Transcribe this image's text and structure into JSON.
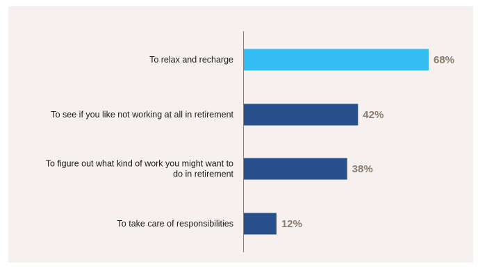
{
  "chart_data": {
    "type": "bar",
    "orientation": "horizontal",
    "categories": [
      [
        "To relax and recharge"
      ],
      [
        "To see if you like not working at all in retirement"
      ],
      [
        "To figure out what kind of work you might want to",
        "do in retirement"
      ],
      [
        "To take care of responsibilities"
      ]
    ],
    "values": [
      68,
      42,
      38,
      12
    ],
    "value_labels": [
      "68%",
      "42%",
      "38%",
      "12%"
    ],
    "bar_colors": [
      "#33bdf2",
      "#27508d",
      "#27508d",
      "#27508d"
    ],
    "value_label_color": "#8a7b6d",
    "xlim": [
      0,
      100
    ],
    "title": "",
    "xlabel": "",
    "ylabel": "",
    "grid": false,
    "legend": "none"
  },
  "colors": {
    "panel_background": "#f6f1ee",
    "axis_line": "#7f7f7f"
  }
}
